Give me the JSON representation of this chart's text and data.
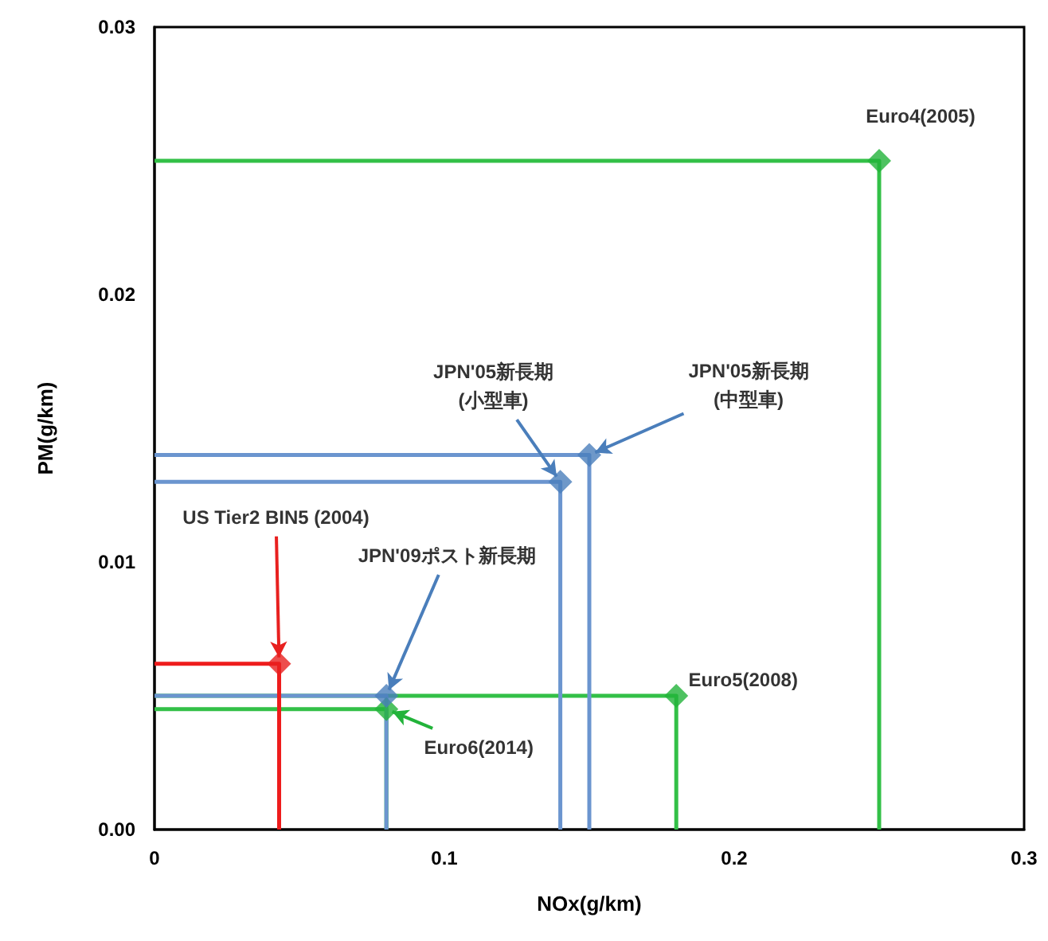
{
  "chart_data": {
    "type": "line",
    "xlabel": "NOx(g/km)",
    "ylabel": "PM(g/km)",
    "xlim": [
      0,
      0.3
    ],
    "ylim": [
      0,
      0.03
    ],
    "xticks": [
      0,
      0.1,
      0.2,
      0.3
    ],
    "yticks": [
      {
        "value": 0,
        "label": "0.00"
      },
      {
        "value": 0.01,
        "label": "0.01"
      },
      {
        "value": 0.02,
        "label": "0.02"
      },
      {
        "value": 0.03,
        "label": "0.03"
      }
    ],
    "grid": false,
    "marker": "none",
    "line_style": "solid",
    "series": [
      {
        "type": "line",
        "color": "#33c047",
        "x": [
          0,
          0.25,
          0.25
        ],
        "values": [
          0.025,
          0.025,
          0
        ]
      },
      {
        "type": "line",
        "color": "#33c047",
        "x": [
          0,
          0.18,
          0.18
        ],
        "values": [
          0.005,
          0.005,
          0
        ]
      },
      {
        "type": "line",
        "color": "#33c047",
        "x": [
          0,
          0.08,
          0.08
        ],
        "values": [
          0.0045,
          0.0045,
          0
        ]
      },
      {
        "type": "line",
        "color": "#6b95cf",
        "x": [
          0,
          0.14,
          0.14
        ],
        "values": [
          0.013,
          0.013,
          0
        ]
      },
      {
        "type": "line",
        "color": "#6b95cf",
        "x": [
          0,
          0.15,
          0.15
        ],
        "values": [
          0.014,
          0.014,
          0
        ]
      },
      {
        "type": "line",
        "color": "#6b95cf",
        "x": [
          0,
          0.08,
          0.08
        ],
        "values": [
          0.005,
          0.005,
          0
        ]
      },
      {
        "type": "line",
        "color": "#ee1c1c",
        "x": [
          0,
          0.043,
          0.043
        ],
        "values": [
          0.0062,
          0.0062,
          0
        ]
      },
      {
        "type": "scatter",
        "marker": "diamond",
        "color": "#22b33a",
        "x": [
          0.25,
          0.18,
          0.08
        ],
        "values": [
          0.025,
          0.005,
          0.0045
        ]
      },
      {
        "type": "scatter",
        "marker": "diamond",
        "color": "#4a7ebb",
        "x": [
          0.14,
          0.15,
          0.08
        ],
        "values": [
          0.013,
          0.014,
          0.005
        ]
      },
      {
        "type": "scatter",
        "marker": "diamond",
        "color": "#e8201f",
        "x": [
          0.043
        ],
        "values": [
          0.0062
        ]
      }
    ],
    "annotations": [
      {
        "text": "Euro4(2005)",
        "x": 0.25,
        "y": 0.025
      },
      {
        "text": "Euro5(2008)",
        "x": 0.18,
        "y": 0.005
      },
      {
        "text": "Euro6(2014)",
        "x": 0.08,
        "y": 0.0045
      },
      {
        "text": "JPN'05新長期\n(小型車)",
        "x": 0.14,
        "y": 0.013
      },
      {
        "text": "JPN'05新長期\n(中型車)",
        "x": 0.15,
        "y": 0.014
      },
      {
        "text": "JPN'09ポスト新長期",
        "x": 0.08,
        "y": 0.005
      },
      {
        "text": "US Tier2 BIN5 (2004)",
        "x": 0.043,
        "y": 0.0062
      }
    ]
  }
}
